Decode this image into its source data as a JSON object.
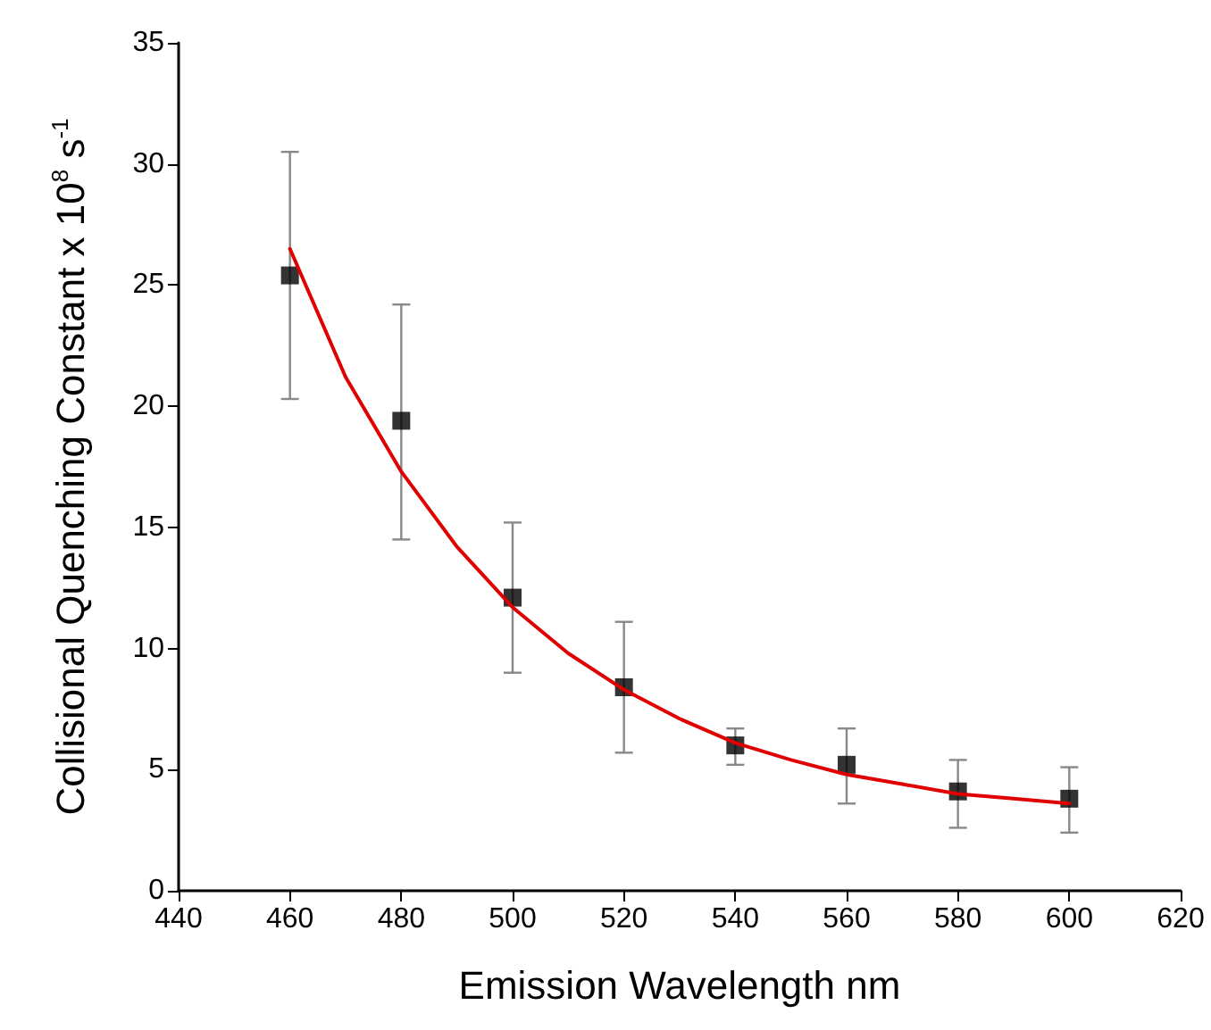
{
  "chart_data": {
    "type": "scatter",
    "xlabel": "Emission Wavelength nm",
    "ylabel": "Collisional Quenching Constant x 10$^{8}$ s$^{-1}$",
    "xlim": [
      440,
      620
    ],
    "xticks": [
      440,
      460,
      480,
      500,
      520,
      540,
      560,
      580,
      600,
      620
    ],
    "ylim": [
      0,
      35
    ],
    "yticks": [
      0,
      5,
      10,
      15,
      20,
      25,
      30,
      35
    ],
    "grid": false,
    "series": [
      {
        "color": "#000000",
        "marker": "square",
        "x": [
          460,
          480,
          500,
          520,
          540,
          560,
          580,
          600
        ],
        "values": [
          25.4,
          19.4,
          12.1,
          8.4,
          6.0,
          5.2,
          4.1,
          3.8
        ],
        "errors": [
          [
            20.3,
            30.5
          ],
          [
            14.5,
            24.2
          ],
          [
            9.0,
            15.2
          ],
          [
            5.7,
            11.1
          ],
          [
            5.2,
            6.7
          ],
          [
            3.6,
            6.7
          ],
          [
            2.6,
            5.4
          ],
          [
            2.4,
            5.1
          ]
        ]
      },
      {
        "type": "line",
        "color": "#e00000",
        "marker": "none",
        "line_style": "solid",
        "x": [
          460,
          470,
          480,
          490,
          500,
          510,
          520,
          530,
          540,
          550,
          560,
          570,
          580,
          590,
          600
        ],
        "values": [
          26.5,
          21.2,
          17.3,
          14.2,
          11.7,
          9.8,
          8.3,
          7.1,
          6.1,
          5.4,
          4.8,
          4.4,
          4.0,
          3.8,
          3.6
        ]
      }
    ]
  }
}
